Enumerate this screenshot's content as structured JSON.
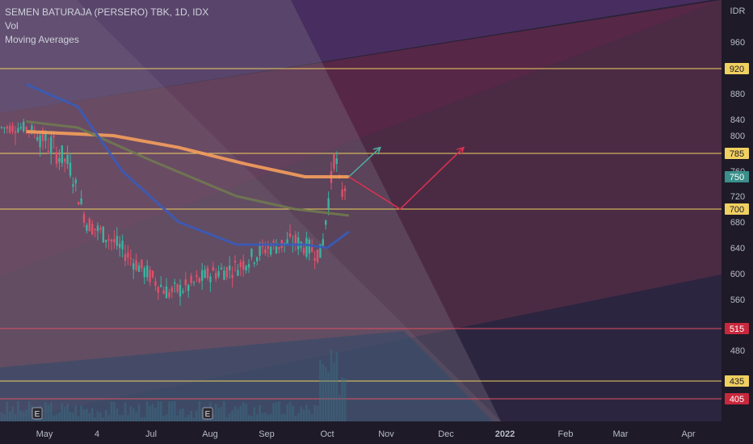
{
  "header": {
    "symbol_line": "SEMEN BATURAJA (PERSERO) TBK, 1D, IDX",
    "indicator_1": "Vol",
    "indicator_2": "Moving Averages"
  },
  "currency_label": "IDR",
  "chart_data": {
    "type": "candlestick",
    "title": "SEMEN BATURAJA (PERSERO) TBK, 1D, IDX",
    "ylim": [
      370,
      1000
    ],
    "y_ticks": [
      480,
      560,
      600,
      640,
      680,
      720,
      760,
      800,
      840,
      880,
      960
    ],
    "x_ticks": [
      "May",
      "4",
      "Jul",
      "Aug",
      "Sep",
      "Oct",
      "Nov",
      "Dec",
      "2022",
      "Feb",
      "Mar",
      "Apr"
    ],
    "earnings_markers": [
      "E",
      "E"
    ],
    "horizontal_levels": [
      {
        "value": 920,
        "color": "#f0d060"
      },
      {
        "value": 785,
        "color": "#f0d060"
      },
      {
        "value": 700,
        "color": "#f0d060"
      },
      {
        "value": 515,
        "color": "#e05060"
      },
      {
        "value": 435,
        "color": "#f0d060"
      },
      {
        "value": 405,
        "color": "#e05060"
      }
    ],
    "last_price": 750,
    "price_path": [
      [
        "Apr 22",
        820
      ],
      [
        "May 15",
        770
      ],
      [
        "May 25",
        680
      ],
      [
        "Jun 10",
        650
      ],
      [
        "Jun 25",
        610
      ],
      [
        "Jul 10",
        570
      ],
      [
        "Jul 20",
        580
      ],
      [
        "Aug 1",
        600
      ],
      [
        "Aug 15",
        610
      ],
      [
        "Sep 1",
        640
      ],
      [
        "Sep 15",
        650
      ],
      [
        "Sep 28",
        630
      ],
      [
        "Oct 1",
        700
      ],
      [
        "Oct 5",
        790
      ],
      [
        "Oct 8",
        720
      ],
      [
        "Oct 12",
        750
      ]
    ],
    "moving_averages": [
      {
        "color": "#f59e5c",
        "values": [
          [
            "Apr 22",
            810
          ],
          [
            "Jun 10",
            800
          ],
          [
            "Jul 15",
            790
          ],
          [
            "Aug 20",
            770
          ],
          [
            "Sep 20",
            750
          ],
          [
            "Oct 12",
            750
          ]
        ]
      },
      {
        "color": "#6f7a50",
        "values": [
          [
            "Apr 22",
            835
          ],
          [
            "May 20",
            820
          ],
          [
            "Jul 1",
            775
          ],
          [
            "Aug 15",
            720
          ],
          [
            "Sep 15",
            700
          ],
          [
            "Oct 12",
            690
          ]
        ]
      },
      {
        "color": "#3a5bb8",
        "values": [
          [
            "Apr 22",
            895
          ],
          [
            "May 20",
            860
          ],
          [
            "Jun 15",
            760
          ],
          [
            "Jul 15",
            680
          ],
          [
            "Aug 15",
            645
          ],
          [
            "Sep 20",
            645
          ],
          [
            "Oct 1",
            640
          ],
          [
            "Oct 12",
            665
          ]
        ]
      }
    ],
    "projections": [
      {
        "color": "#e03050",
        "points": [
          [
            "Oct 12",
            750
          ],
          [
            "Nov 8",
            700
          ],
          [
            "Dec 10",
            790
          ]
        ]
      },
      {
        "color": "#4fb0a0",
        "points": [
          [
            "Oct 12",
            750
          ],
          [
            "Oct 28",
            790
          ]
        ]
      }
    ]
  }
}
